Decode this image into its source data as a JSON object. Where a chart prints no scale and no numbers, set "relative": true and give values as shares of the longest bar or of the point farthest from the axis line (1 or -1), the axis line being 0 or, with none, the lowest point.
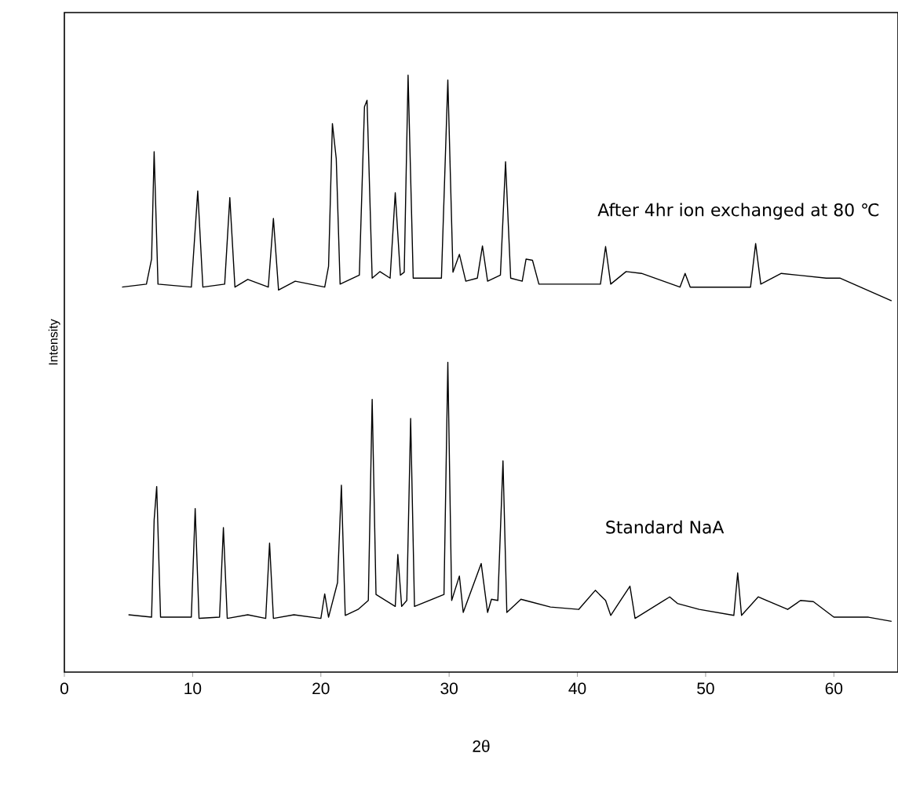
{
  "chart_data": {
    "type": "line",
    "relative": true,
    "xlabel": "2θ",
    "ylabel": "Intensity",
    "xlim": [
      0,
      65
    ],
    "xticks": [
      0,
      10,
      20,
      30,
      40,
      50,
      60
    ],
    "grid": false,
    "marker": "none",
    "line_style": "solid",
    "series": [
      {
        "name": "After 4hr ion exchanged at 80 ℃",
        "color": "#000000",
        "x": [
          4.5,
          6.4,
          6.8,
          7.0,
          7.3,
          9.9,
          10.4,
          10.8,
          12.5,
          12.9,
          13.3,
          14.3,
          15.9,
          16.3,
          16.7,
          18.0,
          20.3,
          20.6,
          20.9,
          21.2,
          21.5,
          23.0,
          23.4,
          23.6,
          24.0,
          24.6,
          25.4,
          25.8,
          26.2,
          26.5,
          26.8,
          27.2,
          29.4,
          29.9,
          30.3,
          30.8,
          31.3,
          32.2,
          32.6,
          33.0,
          34.0,
          34.4,
          34.8,
          35.7,
          36.0,
          36.5,
          37.0,
          41.8,
          42.2,
          42.6,
          43.8,
          45.0,
          48.0,
          48.4,
          48.8,
          53.5,
          53.9,
          54.3,
          55.9,
          59.4,
          60.5,
          64.5
        ],
        "values": [
          0.645,
          0.65,
          0.692,
          0.872,
          0.65,
          0.645,
          0.806,
          0.645,
          0.65,
          0.795,
          0.645,
          0.658,
          0.645,
          0.76,
          0.64,
          0.655,
          0.645,
          0.68,
          0.919,
          0.86,
          0.65,
          0.665,
          0.947,
          0.958,
          0.66,
          0.671,
          0.66,
          0.803,
          0.665,
          0.67,
          1.0,
          0.66,
          0.66,
          0.992,
          0.67,
          0.7,
          0.655,
          0.66,
          0.714,
          0.655,
          0.665,
          0.855,
          0.66,
          0.655,
          0.692,
          0.69,
          0.65,
          0.65,
          0.713,
          0.65,
          0.671,
          0.668,
          0.645,
          0.668,
          0.645,
          0.645,
          0.718,
          0.65,
          0.668,
          0.66,
          0.66,
          0.622
        ]
      },
      {
        "name": "Standard NaA",
        "color": "#000000",
        "x": [
          5.0,
          6.8,
          7.0,
          7.2,
          7.5,
          9.9,
          10.2,
          10.5,
          12.1,
          12.4,
          12.7,
          14.3,
          15.7,
          16.0,
          16.3,
          17.9,
          20.0,
          20.3,
          20.6,
          21.3,
          21.6,
          21.9,
          22.9,
          23.7,
          24.0,
          24.3,
          25.8,
          26.0,
          26.3,
          26.7,
          27.0,
          27.3,
          29.6,
          29.9,
          30.2,
          30.8,
          31.1,
          32.5,
          33.0,
          33.3,
          33.8,
          34.2,
          34.5,
          35.6,
          36.3,
          37.9,
          40.1,
          41.4,
          42.2,
          42.6,
          44.1,
          44.5,
          47.2,
          47.8,
          49.5,
          52.2,
          52.5,
          52.8,
          54.1,
          56.4,
          57.4,
          58.4,
          60.0,
          62.7,
          64.5
        ],
        "values": [
          0.096,
          0.092,
          0.255,
          0.311,
          0.092,
          0.092,
          0.274,
          0.09,
          0.092,
          0.242,
          0.09,
          0.096,
          0.09,
          0.216,
          0.09,
          0.096,
          0.09,
          0.131,
          0.092,
          0.15,
          0.313,
          0.095,
          0.105,
          0.12,
          0.457,
          0.13,
          0.11,
          0.197,
          0.11,
          0.12,
          0.425,
          0.11,
          0.13,
          0.519,
          0.12,
          0.161,
          0.1,
          0.182,
          0.1,
          0.122,
          0.12,
          0.354,
          0.1,
          0.122,
          0.118,
          0.109,
          0.105,
          0.137,
          0.12,
          0.095,
          0.144,
          0.09,
          0.126,
          0.115,
          0.105,
          0.095,
          0.166,
          0.095,
          0.126,
          0.105,
          0.12,
          0.118,
          0.092,
          0.092,
          0.085
        ]
      }
    ]
  }
}
